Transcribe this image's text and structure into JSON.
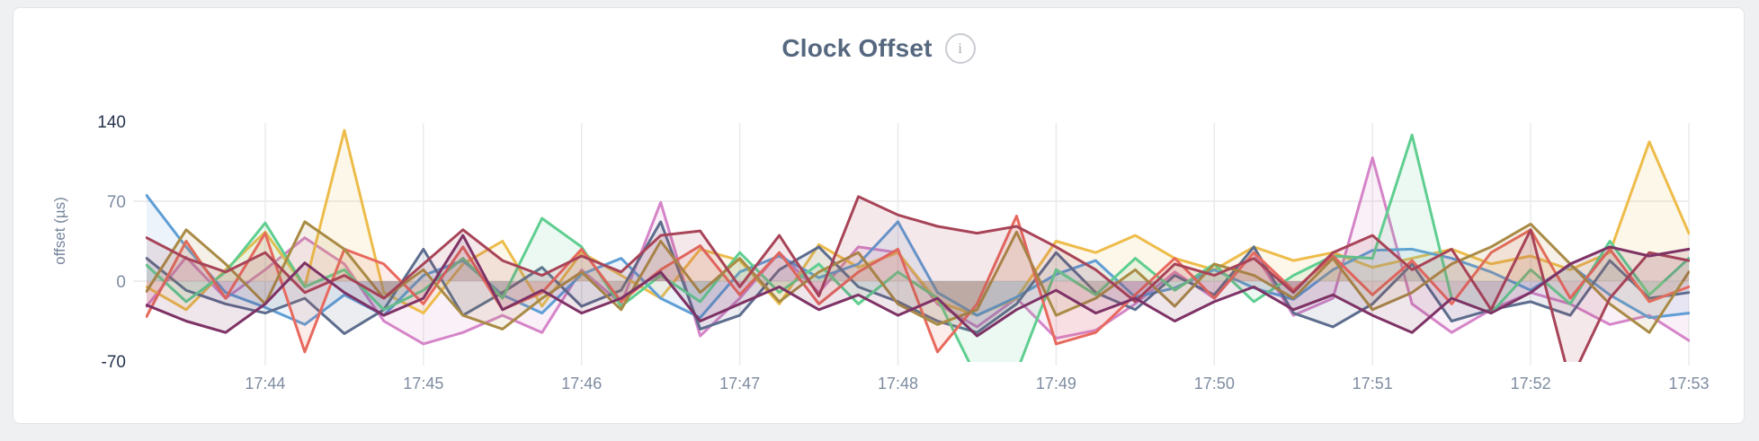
{
  "info_icon_glyph": "i",
  "chart_data": {
    "type": "area",
    "title": "Clock Offset",
    "xlabel": "",
    "ylabel": "offset (µs)",
    "ylim": [
      -70,
      140
    ],
    "y_ticks": [
      {
        "value": 140,
        "label": "140",
        "emphasis": true
      },
      {
        "value": 70,
        "label": "70",
        "emphasis": false
      },
      {
        "value": 0,
        "label": "0",
        "emphasis": false
      },
      {
        "value": -70,
        "label": "-70",
        "emphasis": true
      }
    ],
    "y_gridlines": [
      70,
      0
    ],
    "x_tick_labels": [
      "17:44",
      "17:45",
      "17:46",
      "17:47",
      "17:48",
      "17:49",
      "17:50",
      "17:51",
      "17:52",
      "17:53"
    ],
    "grid": "on",
    "legend_position": "none",
    "points_per_series": 40,
    "x_start_label": "17:43:15",
    "x_end_label": "17:53:00",
    "series": [
      {
        "name": "pink",
        "color": "#d584c8",
        "values": [
          -22,
          21,
          -15,
          10,
          38,
          15,
          -35,
          -55,
          -45,
          -30,
          -45,
          10,
          -20,
          69,
          -48,
          -15,
          25,
          -10,
          30,
          25,
          -20,
          -40,
          -15,
          -50,
          -43,
          -20,
          8,
          -15,
          25,
          -30,
          -15,
          108,
          -20,
          -45,
          -25,
          -10,
          -20,
          -38,
          -30,
          -52
        ]
      },
      {
        "name": "gold",
        "color": "#edbc4a",
        "values": [
          -5,
          -25,
          10,
          43,
          -5,
          132,
          -10,
          -28,
          15,
          35,
          -22,
          25,
          5,
          -15,
          28,
          18,
          -20,
          32,
          12,
          25,
          -18,
          -30,
          -15,
          35,
          25,
          40,
          20,
          10,
          30,
          18,
          25,
          12,
          20,
          28,
          15,
          22,
          10,
          25,
          122,
          42
        ]
      },
      {
        "name": "blue",
        "color": "#5f9ed6",
        "values": [
          75,
          30,
          -10,
          -23,
          -38,
          -12,
          -30,
          5,
          18,
          -12,
          -28,
          6,
          20,
          -15,
          -32,
          8,
          22,
          3,
          15,
          52,
          -10,
          -30,
          -14,
          6,
          18,
          -14,
          -6,
          10,
          -6,
          -16,
          10,
          27,
          28,
          20,
          8,
          -8,
          14,
          -12,
          -32,
          -28
        ]
      },
      {
        "name": "slate",
        "color": "#5d6d8e",
        "values": [
          20,
          -8,
          -20,
          -28,
          -15,
          -46,
          -25,
          28,
          -30,
          -10,
          12,
          -22,
          -8,
          52,
          -42,
          -30,
          10,
          30,
          -5,
          -18,
          -35,
          -45,
          -20,
          25,
          -10,
          -25,
          5,
          -12,
          30,
          -28,
          -40,
          -20,
          15,
          -35,
          -25,
          -18,
          -30,
          18,
          -15,
          -10
        ]
      },
      {
        "name": "green",
        "color": "#5fce90",
        "values": [
          14,
          -18,
          8,
          51,
          -5,
          10,
          -25,
          -8,
          20,
          -15,
          55,
          30,
          -22,
          5,
          -18,
          25,
          -10,
          15,
          -20,
          8,
          -15,
          -85,
          -80,
          10,
          -12,
          20,
          -8,
          15,
          -18,
          5,
          22,
          20,
          128,
          -15,
          -28,
          10,
          -20,
          35,
          -12,
          20
        ]
      },
      {
        "name": "red",
        "color": "#e8695e",
        "values": [
          -31,
          35,
          -15,
          42,
          -62,
          28,
          15,
          -20,
          30,
          -25,
          -10,
          28,
          -18,
          10,
          31,
          -12,
          25,
          -20,
          8,
          28,
          -62,
          -20,
          57,
          -55,
          -45,
          -12,
          20,
          -15,
          25,
          -8,
          22,
          -12,
          18,
          -20,
          25,
          45,
          -15,
          28,
          -18,
          -5
        ]
      },
      {
        "name": "olive",
        "color": "#a98b45",
        "values": [
          -9,
          45,
          15,
          -20,
          52,
          28,
          -15,
          10,
          -30,
          -42,
          -15,
          8,
          -25,
          35,
          -10,
          20,
          -18,
          8,
          25,
          -20,
          -38,
          -25,
          43,
          -30,
          -15,
          10,
          -22,
          15,
          5,
          -15,
          20,
          -25,
          -10,
          15,
          30,
          50,
          15,
          -20,
          -45,
          8
        ]
      },
      {
        "name": "maroon",
        "color": "#a84458",
        "values": [
          38,
          20,
          8,
          25,
          -10,
          5,
          -15,
          15,
          45,
          18,
          5,
          22,
          8,
          40,
          44,
          -5,
          40,
          -13,
          74,
          58,
          48,
          42,
          48,
          30,
          10,
          -18,
          15,
          5,
          20,
          -10,
          25,
          40,
          10,
          28,
          -25,
          45,
          -88,
          -15,
          25,
          18
        ]
      },
      {
        "name": "plum",
        "color": "#7e3265",
        "values": [
          -21,
          -35,
          -45,
          -20,
          16,
          -10,
          -30,
          -15,
          40,
          -25,
          -8,
          -28,
          -15,
          8,
          -35,
          -20,
          -5,
          -25,
          -12,
          -30,
          -15,
          -48,
          -25,
          -8,
          -28,
          -15,
          -35,
          -18,
          -5,
          -25,
          -12,
          -30,
          -45,
          -15,
          -28,
          -10,
          15,
          30,
          22,
          28
        ]
      }
    ],
    "colors": {
      "grid": "#e8e9ea",
      "tick_label": "#7e8ba0",
      "tick_label_emphasis": "#26334e",
      "title": "#56687f"
    }
  }
}
